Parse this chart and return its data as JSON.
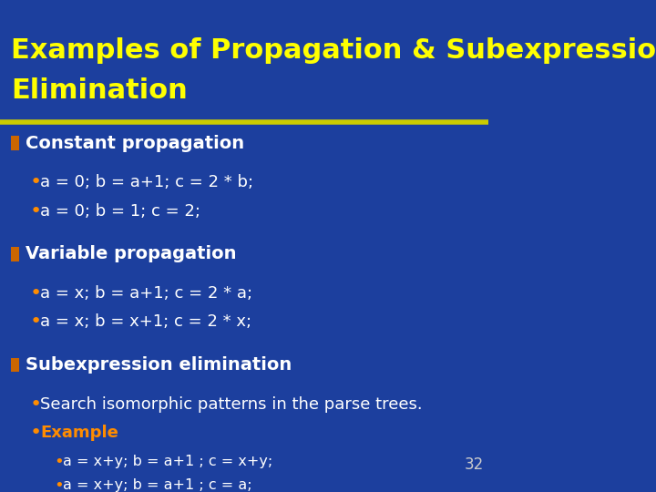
{
  "title_line1": "Examples of Propagation & Subexpression",
  "title_line2": "Elimination",
  "title_color": "#FFFF00",
  "title_fontsize": 22,
  "bg_color": "#1c3f9e",
  "separator_color": "#CCCC00",
  "bullet_square_color": "#CC6600",
  "bullet_dot_color": "#FF8C00",
  "page_number": "32",
  "page_number_color": "#cccccc",
  "sections": [
    {
      "header": "Constant propagation",
      "header_color": "#ffffff",
      "bullets": [
        {
          "text": "a = 0; b = a+1; c = 2 * b;",
          "color": "#ffffff"
        },
        {
          "text": "a = 0; b = 1; c = 2;",
          "color": "#ffffff"
        }
      ],
      "sub_bullets": []
    },
    {
      "header": "Variable propagation",
      "header_color": "#ffffff",
      "bullets": [
        {
          "text": "a = x; b = a+1; c = 2 * a;",
          "color": "#ffffff"
        },
        {
          "text": "a = x; b = x+1; c = 2 * x;",
          "color": "#ffffff"
        }
      ],
      "sub_bullets": []
    },
    {
      "header": "Subexpression elimination",
      "header_color": "#ffffff",
      "bullets": [
        {
          "text": "Search isomorphic patterns in the parse trees.",
          "color": "#ffffff"
        },
        {
          "text": "Example",
          "color": "#FF8C00"
        }
      ],
      "sub_bullets": [
        {
          "text": "a = x+y; b = a+1 ; c = x+y;",
          "color": "#ffffff"
        },
        {
          "text": "a = x+y; b = a+1 ; c = a;",
          "color": "#ffffff"
        }
      ]
    }
  ]
}
